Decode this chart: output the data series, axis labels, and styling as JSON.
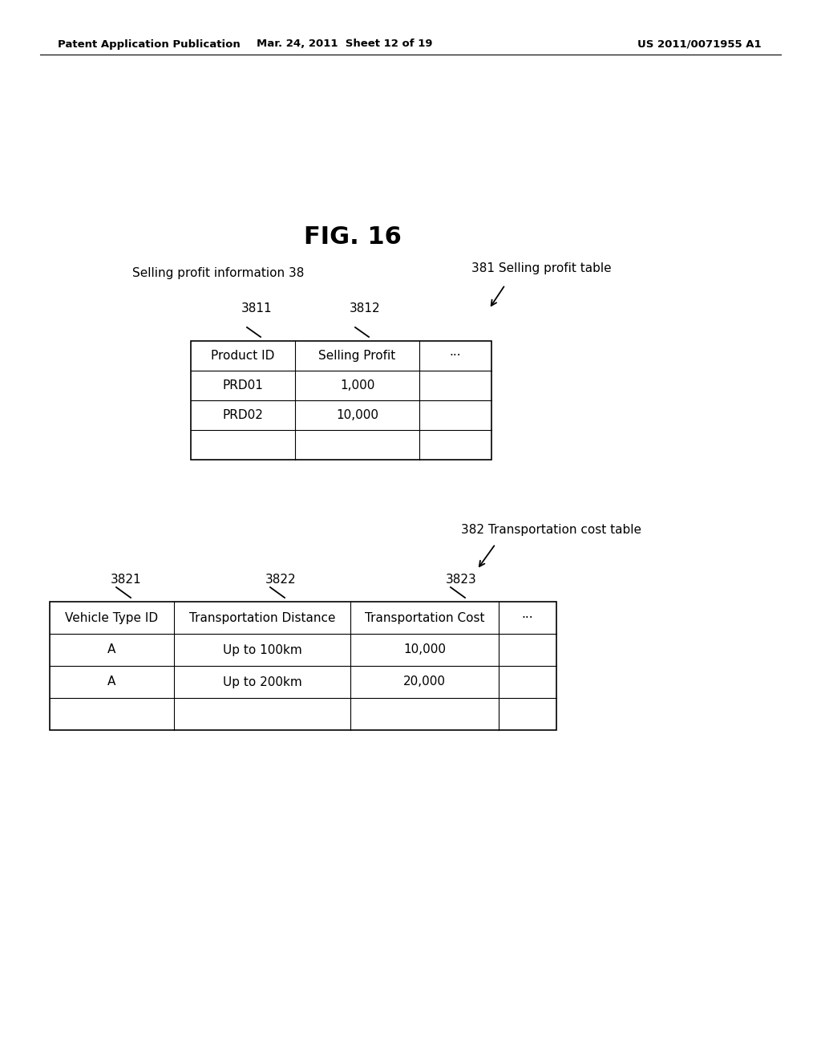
{
  "bg_color": "#ffffff",
  "header_left": "Patent Application Publication",
  "header_center": "Mar. 24, 2011  Sheet 12 of 19",
  "header_right": "US 2011/0071955 A1",
  "fig_title": "FIG. 16",
  "label_selling_info": "Selling profit information 38",
  "label_381": "381 Selling profit table",
  "label_3811": "3811",
  "label_3812": "3812",
  "table1_headers": [
    "Product ID",
    "Selling Profit",
    "···"
  ],
  "table1_rows": [
    [
      "PRD01",
      "1,000",
      ""
    ],
    [
      "PRD02",
      "10,000",
      ""
    ],
    [
      "",
      "",
      ""
    ]
  ],
  "label_382": "382 Transportation cost table",
  "label_3821": "3821",
  "label_3822": "3822",
  "label_3823": "3823",
  "table2_headers": [
    "Vehicle Type ID",
    "Transportation Distance",
    "Transportation Cost",
    "···"
  ],
  "table2_rows": [
    [
      "A",
      "Up to 100km",
      "10,000",
      ""
    ],
    [
      "A",
      "Up to 200km",
      "20,000",
      ""
    ],
    [
      "",
      "",
      "",
      ""
    ]
  ],
  "text_color": "#000000",
  "line_color": "#000000"
}
